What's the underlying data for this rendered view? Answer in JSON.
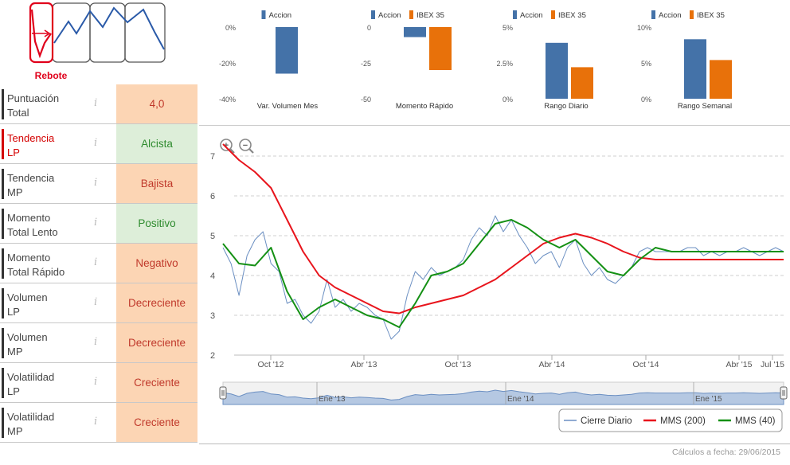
{
  "pattern": {
    "label": "Rebote",
    "accent": "#e0001b",
    "line_color": "#2a5aa8"
  },
  "score_rows": [
    {
      "label": "Puntuación\nTotal",
      "value": "4,0",
      "tone": "neutral",
      "highlight": false
    },
    {
      "label": "Tendencia\nLP",
      "value": "Alcista",
      "tone": "good",
      "highlight": true
    },
    {
      "label": "Tendencia\nMP",
      "value": "Bajista",
      "tone": "bad",
      "highlight": false
    },
    {
      "label": "Momento\nTotal Lento",
      "value": "Positivo",
      "tone": "good",
      "highlight": false
    },
    {
      "label": "Momento\nTotal Rápido",
      "value": "Negativo",
      "tone": "bad",
      "highlight": false
    },
    {
      "label": "Volumen\nLP",
      "value": "Decreciente",
      "tone": "bad",
      "highlight": false
    },
    {
      "label": "Volumen\nMP",
      "value": "Decreciente",
      "tone": "bad",
      "highlight": false
    },
    {
      "label": "Volatilidad\nLP",
      "value": "Creciente",
      "tone": "bad",
      "highlight": false
    },
    {
      "label": "Volatilidad\nMP",
      "value": "Creciente",
      "tone": "bad",
      "highlight": false
    }
  ],
  "info_glyph": "i",
  "colors": {
    "accion": "#4472a8",
    "ibex": "#e8710a",
    "cierre": "#6b8fc2",
    "mms200": "#e8141c",
    "mms40": "#149014",
    "grid": "#cfcfcf"
  },
  "chart_data": [
    {
      "type": "bar",
      "title": "Var. Volumen Mes",
      "legend": [
        "Accion"
      ],
      "series": [
        {
          "name": "Accion",
          "values": [
            -26
          ]
        }
      ],
      "yticks": [
        "0%",
        "-20%",
        "-40%"
      ],
      "ylim": [
        -40,
        0
      ]
    },
    {
      "type": "bar",
      "title": "Momento Rápido",
      "legend": [
        "Accion",
        "IBEX 35"
      ],
      "series": [
        {
          "name": "Accion",
          "values": [
            -7
          ]
        },
        {
          "name": "IBEX 35",
          "values": [
            -30
          ]
        }
      ],
      "yticks": [
        "0",
        "-25",
        "-50"
      ],
      "ylim": [
        -50,
        0
      ]
    },
    {
      "type": "bar",
      "title": "Rango Diario",
      "legend": [
        "Accion",
        "IBEX 35"
      ],
      "series": [
        {
          "name": "Accion",
          "values": [
            3.9
          ]
        },
        {
          "name": "IBEX 35",
          "values": [
            2.2
          ]
        }
      ],
      "yticks": [
        "5%",
        "2.5%",
        "0%"
      ],
      "ylim": [
        0,
        5
      ]
    },
    {
      "type": "bar",
      "title": "Rango Semanal",
      "legend": [
        "Accion",
        "IBEX 35"
      ],
      "series": [
        {
          "name": "Accion",
          "values": [
            8.3
          ]
        },
        {
          "name": "IBEX 35",
          "values": [
            5.4
          ]
        }
      ],
      "yticks": [
        "10%",
        "5%",
        "0%"
      ],
      "ylim": [
        0,
        10
      ]
    },
    {
      "type": "line",
      "title": "",
      "ylim": [
        2,
        7.2
      ],
      "yticks": [
        "7",
        "6",
        "5",
        "4",
        "3",
        "2"
      ],
      "xticks": [
        "Oct '12",
        "Abr '13",
        "Oct '13",
        "Abr '14",
        "Oct '14",
        "Abr '15",
        "Jul '15"
      ],
      "navigator_labels": [
        "Ene '13",
        "Ene '14",
        "Ene '15"
      ],
      "x_range": [
        "2012-07",
        "2015-06"
      ],
      "series": [
        {
          "name": "Cierre Diario",
          "points": [
            [
              0,
              4.7
            ],
            [
              0.5,
              4.3
            ],
            [
              1,
              3.5
            ],
            [
              1.5,
              4.5
            ],
            [
              2,
              4.9
            ],
            [
              2.5,
              5.1
            ],
            [
              3,
              4.3
            ],
            [
              3.5,
              4.1
            ],
            [
              4,
              3.3
            ],
            [
              4.5,
              3.4
            ],
            [
              5,
              3.0
            ],
            [
              5.5,
              2.8
            ],
            [
              6,
              3.1
            ],
            [
              6.5,
              3.9
            ],
            [
              7,
              3.2
            ],
            [
              7.5,
              3.4
            ],
            [
              8,
              3.1
            ],
            [
              8.5,
              3.3
            ],
            [
              9,
              3.2
            ],
            [
              9.5,
              3.0
            ],
            [
              10,
              2.9
            ],
            [
              10.5,
              2.4
            ],
            [
              11,
              2.6
            ],
            [
              11.5,
              3.5
            ],
            [
              12,
              4.1
            ],
            [
              12.5,
              3.9
            ],
            [
              13,
              4.2
            ],
            [
              13.5,
              4.0
            ],
            [
              14,
              4.1
            ],
            [
              14.5,
              4.2
            ],
            [
              15,
              4.4
            ],
            [
              15.5,
              4.9
            ],
            [
              16,
              5.2
            ],
            [
              16.5,
              5.0
            ],
            [
              17,
              5.5
            ],
            [
              17.5,
              5.1
            ],
            [
              18,
              5.4
            ],
            [
              18.5,
              5.0
            ],
            [
              19,
              4.7
            ],
            [
              19.5,
              4.3
            ],
            [
              20,
              4.5
            ],
            [
              20.5,
              4.6
            ],
            [
              21,
              4.2
            ],
            [
              21.5,
              4.7
            ],
            [
              22,
              4.9
            ],
            [
              22.5,
              4.3
            ],
            [
              23,
              4.0
            ],
            [
              23.5,
              4.2
            ],
            [
              24,
              3.9
            ],
            [
              24.5,
              3.8
            ],
            [
              25,
              4.0
            ],
            [
              25.5,
              4.2
            ],
            [
              26,
              4.6
            ],
            [
              26.5,
              4.7
            ],
            [
              27,
              4.6
            ],
            [
              27.5,
              4.6
            ],
            [
              28,
              4.6
            ],
            [
              28.5,
              4.6
            ],
            [
              29,
              4.7
            ],
            [
              29.5,
              4.7
            ],
            [
              30,
              4.5
            ],
            [
              30.5,
              4.6
            ],
            [
              31,
              4.5
            ],
            [
              31.5,
              4.6
            ],
            [
              32,
              4.6
            ],
            [
              32.5,
              4.7
            ],
            [
              33,
              4.6
            ],
            [
              33.5,
              4.5
            ],
            [
              34,
              4.6
            ],
            [
              34.5,
              4.7
            ],
            [
              35,
              4.6
            ]
          ]
        },
        {
          "name": "MMS (200)",
          "points": [
            [
              0,
              7.3
            ],
            [
              1,
              6.9
            ],
            [
              2,
              6.6
            ],
            [
              3,
              6.2
            ],
            [
              4,
              5.4
            ],
            [
              5,
              4.6
            ],
            [
              6,
              4.0
            ],
            [
              7,
              3.7
            ],
            [
              8,
              3.5
            ],
            [
              9,
              3.3
            ],
            [
              10,
              3.1
            ],
            [
              11,
              3.05
            ],
            [
              12,
              3.2
            ],
            [
              13,
              3.3
            ],
            [
              14,
              3.4
            ],
            [
              15,
              3.5
            ],
            [
              16,
              3.7
            ],
            [
              17,
              3.9
            ],
            [
              18,
              4.2
            ],
            [
              19,
              4.5
            ],
            [
              20,
              4.8
            ],
            [
              21,
              4.95
            ],
            [
              22,
              5.05
            ],
            [
              23,
              4.95
            ],
            [
              24,
              4.8
            ],
            [
              25,
              4.6
            ],
            [
              26,
              4.45
            ],
            [
              27,
              4.4
            ],
            [
              28,
              4.4
            ],
            [
              29,
              4.4
            ],
            [
              30,
              4.4
            ],
            [
              31,
              4.4
            ],
            [
              32,
              4.4
            ],
            [
              33,
              4.4
            ],
            [
              34,
              4.4
            ],
            [
              35,
              4.4
            ]
          ]
        },
        {
          "name": "MMS (40)",
          "points": [
            [
              0,
              4.8
            ],
            [
              1,
              4.3
            ],
            [
              2,
              4.25
            ],
            [
              3,
              4.7
            ],
            [
              4,
              3.6
            ],
            [
              5,
              2.9
            ],
            [
              6,
              3.2
            ],
            [
              7,
              3.4
            ],
            [
              8,
              3.2
            ],
            [
              9,
              3.0
            ],
            [
              10,
              2.9
            ],
            [
              11,
              2.7
            ],
            [
              12,
              3.3
            ],
            [
              13,
              4.0
            ],
            [
              14,
              4.1
            ],
            [
              15,
              4.3
            ],
            [
              16,
              4.8
            ],
            [
              17,
              5.3
            ],
            [
              18,
              5.4
            ],
            [
              19,
              5.2
            ],
            [
              20,
              4.9
            ],
            [
              21,
              4.7
            ],
            [
              22,
              4.9
            ],
            [
              23,
              4.5
            ],
            [
              24,
              4.1
            ],
            [
              25,
              4.0
            ],
            [
              26,
              4.4
            ],
            [
              27,
              4.7
            ],
            [
              28,
              4.6
            ],
            [
              29,
              4.6
            ],
            [
              30,
              4.6
            ],
            [
              31,
              4.6
            ],
            [
              32,
              4.6
            ],
            [
              33,
              4.6
            ],
            [
              34,
              4.6
            ],
            [
              35,
              4.6
            ]
          ]
        }
      ]
    }
  ],
  "legend_labels": [
    "Cierre Diario",
    "MMS (200)",
    "MMS (40)"
  ],
  "footer_text": "Cálculos a fecha: 29/06/2015"
}
